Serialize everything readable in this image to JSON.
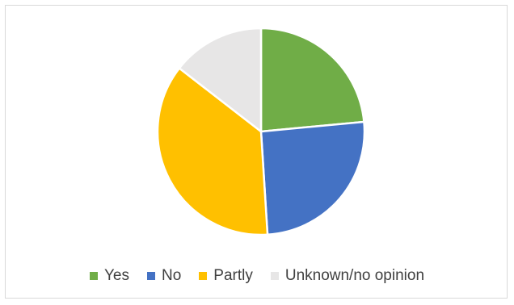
{
  "chart_data": {
    "type": "pie",
    "title": "",
    "start": "12 o'clock",
    "direction": "clockwise",
    "slices": [
      {
        "label": "Yes",
        "value": 23.5,
        "color": "#70ad47"
      },
      {
        "label": "No",
        "value": 25.5,
        "color": "#4472c4"
      },
      {
        "label": "Partly",
        "value": 36.5,
        "color": "#ffc000"
      },
      {
        "label": "Unknown/no opinion",
        "value": 14.5,
        "color": "#e7e6e6"
      }
    ],
    "legend": {
      "position": "bottom"
    }
  }
}
